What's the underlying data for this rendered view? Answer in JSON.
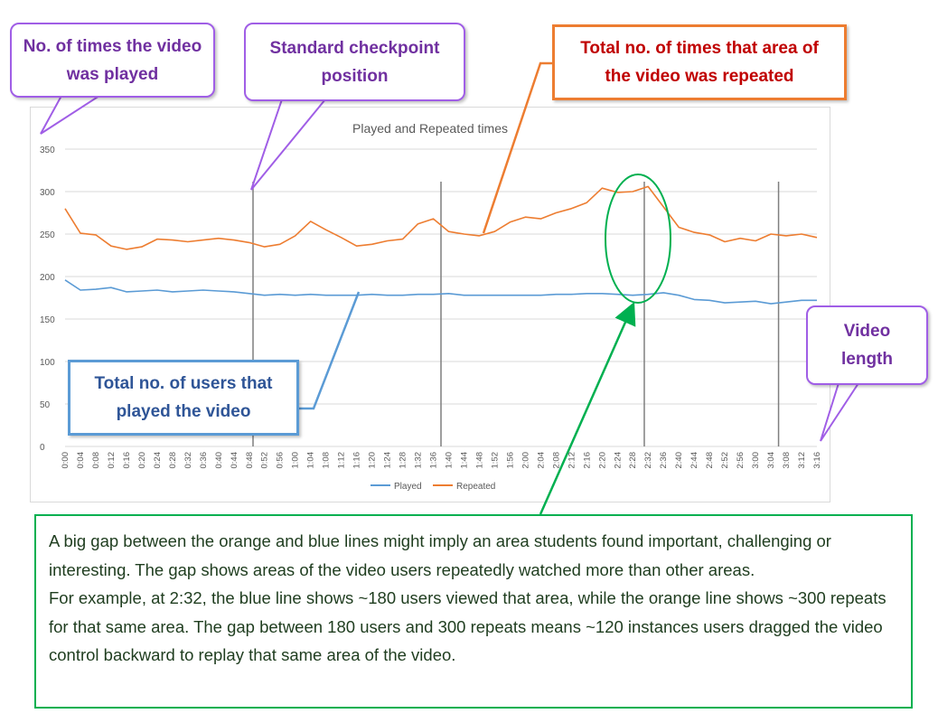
{
  "colors": {
    "played": "#5b9bd5",
    "repeated": "#ed7d31",
    "checkpoint_line": "#7f7f7f",
    "grid": "#d9d9d9",
    "callout_purple": "#a05ee6",
    "callout_green": "#00b050"
  },
  "callouts": {
    "played_count": "No. of times the video was played",
    "checkpoint": "Standard checkpoint position",
    "repeated_count": "Total no. of times that area of the video was repeated",
    "video_length": "Video length",
    "total_users": "Total no. of users that played the video"
  },
  "note": {
    "paragraph1": "A big gap between the orange and blue lines might imply an area students found important, challenging or interesting.  The gap shows areas of the video users repeatedly watched more than other areas.",
    "paragraph2": "For example, at 2:32, the blue line shows ~180 users viewed that area, while the orange line shows ~300 repeats for that same area.  The gap between 180 users and 300 repeats means ~120 instances users dragged the video control backward to replay that same area of the video."
  },
  "chart_data": {
    "type": "line",
    "title": "Played and Repeated times",
    "xlabel": "",
    "ylabel": "",
    "ylim": [
      0,
      350
    ],
    "yticks": [
      0,
      50,
      100,
      150,
      200,
      250,
      300,
      350
    ],
    "grid": true,
    "legend_position": "bottom",
    "x": [
      "0:00",
      "0:04",
      "0:08",
      "0:12",
      "0:16",
      "0:20",
      "0:24",
      "0:28",
      "0:32",
      "0:36",
      "0:40",
      "0:44",
      "0:48",
      "0:52",
      "0:56",
      "1:00",
      "1:04",
      "1:08",
      "1:12",
      "1:16",
      "1:20",
      "1:24",
      "1:28",
      "1:32",
      "1:36",
      "1:40",
      "1:44",
      "1:48",
      "1:52",
      "1:56",
      "2:00",
      "2:04",
      "2:08",
      "2:12",
      "2:16",
      "2:20",
      "2:24",
      "2:28",
      "2:32",
      "2:36",
      "2:40",
      "2:44",
      "2:48",
      "2:52",
      "2:56",
      "3:00",
      "3:04",
      "3:08",
      "3:12",
      "3:16"
    ],
    "checkpoints": [
      "0:49",
      "1:38",
      "2:31",
      "3:06"
    ],
    "series": [
      {
        "name": "Played",
        "values": [
          196,
          184,
          185,
          187,
          182,
          183,
          184,
          182,
          183,
          184,
          183,
          182,
          180,
          178,
          179,
          178,
          179,
          178,
          178,
          178,
          179,
          178,
          178,
          179,
          179,
          180,
          178,
          178,
          178,
          178,
          178,
          178,
          179,
          179,
          180,
          180,
          179,
          178,
          179,
          181,
          178,
          173,
          172,
          169,
          170,
          171,
          168,
          170,
          172,
          172
        ]
      },
      {
        "name": "Repeated",
        "values": [
          280,
          251,
          249,
          236,
          232,
          235,
          244,
          243,
          241,
          243,
          245,
          243,
          240,
          235,
          238,
          248,
          265,
          255,
          246,
          236,
          238,
          242,
          244,
          262,
          268,
          253,
          250,
          248,
          253,
          264,
          270,
          268,
          275,
          280,
          287,
          304,
          299,
          300,
          306,
          282,
          258,
          252,
          249,
          241,
          245,
          242,
          250,
          248,
          250,
          246
        ]
      }
    ]
  }
}
